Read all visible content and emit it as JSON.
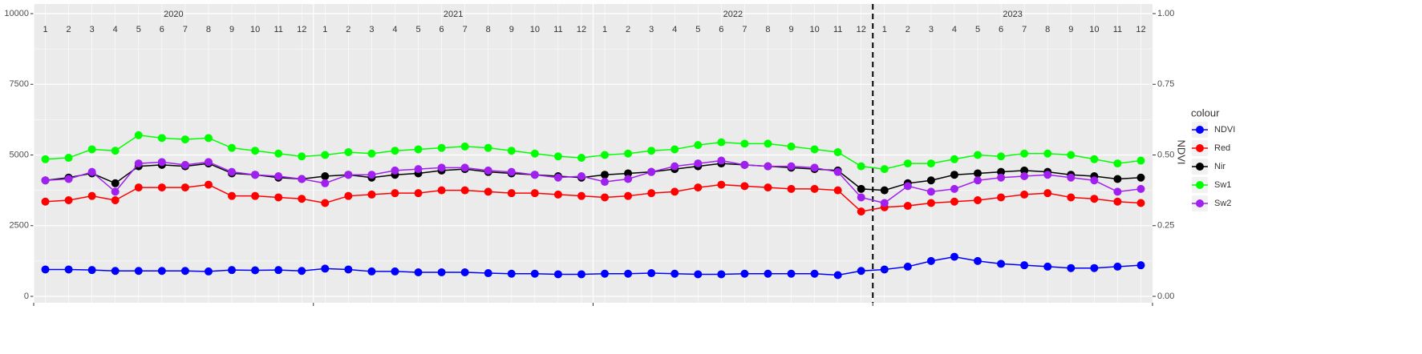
{
  "chart_data": {
    "type": "line",
    "years": [
      "2020",
      "2021",
      "2022",
      "2023"
    ],
    "months": [
      "1",
      "2",
      "3",
      "4",
      "5",
      "6",
      "7",
      "8",
      "9",
      "10",
      "11",
      "12"
    ],
    "x": [
      "2020-01",
      "2020-02",
      "2020-03",
      "2020-04",
      "2020-05",
      "2020-06",
      "2020-07",
      "2020-08",
      "2020-09",
      "2020-10",
      "2020-11",
      "2020-12",
      "2021-01",
      "2021-02",
      "2021-03",
      "2021-04",
      "2021-05",
      "2021-06",
      "2021-07",
      "2021-08",
      "2021-09",
      "2021-10",
      "2021-11",
      "2021-12",
      "2022-01",
      "2022-02",
      "2022-03",
      "2022-04",
      "2022-05",
      "2022-06",
      "2022-07",
      "2022-08",
      "2022-09",
      "2022-10",
      "2022-11",
      "2022-12",
      "2023-01",
      "2023-02",
      "2023-03",
      "2023-04",
      "2023-05",
      "2023-06",
      "2023-07",
      "2023-08",
      "2023-09",
      "2023-10",
      "2023-11",
      "2023-12"
    ],
    "ylim": [
      0,
      10000
    ],
    "yticks": [
      0,
      2500,
      5000,
      7500,
      10000
    ],
    "y2label": "NDVI",
    "y2lim": [
      0,
      1
    ],
    "y2ticks": [
      {
        "value": 0,
        "label": "0.00"
      },
      {
        "value": 0.25,
        "label": "0.25"
      },
      {
        "value": 0.5,
        "label": "0.50"
      },
      {
        "value": 0.75,
        "label": "0.75"
      },
      {
        "value": 1,
        "label": "1.00"
      }
    ],
    "vline": "2023-01",
    "grid": true,
    "legend_title": "colour",
    "series": [
      {
        "name": "NDVI",
        "color": "#0000ff",
        "axis": "y2",
        "values": [
          0.095,
          0.095,
          0.093,
          0.09,
          0.09,
          0.09,
          0.09,
          0.088,
          0.093,
          0.092,
          0.093,
          0.09,
          0.098,
          0.095,
          0.088,
          0.088,
          0.085,
          0.085,
          0.085,
          0.082,
          0.08,
          0.08,
          0.078,
          0.078,
          0.08,
          0.08,
          0.082,
          0.08,
          0.078,
          0.078,
          0.08,
          0.08,
          0.08,
          0.08,
          0.075,
          0.09,
          0.095,
          0.105,
          0.125,
          0.14,
          0.125,
          0.115,
          0.11,
          0.105,
          0.1,
          0.1,
          0.105,
          0.11
        ]
      },
      {
        "name": "Red",
        "color": "#ff0000",
        "values": [
          3350,
          3400,
          3550,
          3400,
          3850,
          3850,
          3850,
          3950,
          3550,
          3550,
          3500,
          3450,
          3300,
          3550,
          3600,
          3650,
          3650,
          3750,
          3750,
          3700,
          3650,
          3650,
          3600,
          3550,
          3500,
          3550,
          3650,
          3700,
          3850,
          3950,
          3900,
          3850,
          3800,
          3800,
          3750,
          3000,
          3150,
          3200,
          3300,
          3350,
          3400,
          3500,
          3600,
          3650,
          3500,
          3450,
          3350,
          3300
        ]
      },
      {
        "name": "Nir",
        "color": "#000000",
        "values": [
          4100,
          4200,
          4350,
          4000,
          4600,
          4650,
          4600,
          4700,
          4350,
          4300,
          4200,
          4150,
          4250,
          4300,
          4200,
          4300,
          4350,
          4450,
          4500,
          4400,
          4350,
          4300,
          4250,
          4200,
          4300,
          4350,
          4400,
          4500,
          4600,
          4700,
          4650,
          4600,
          4550,
          4500,
          4450,
          3800,
          3750,
          4000,
          4100,
          4300,
          4350,
          4400,
          4450,
          4400,
          4300,
          4250,
          4150,
          4200
        ]
      },
      {
        "name": "Sw1",
        "color": "#00ff00",
        "values": [
          4850,
          4900,
          5200,
          5150,
          5700,
          5600,
          5550,
          5600,
          5250,
          5150,
          5050,
          4950,
          5000,
          5100,
          5050,
          5150,
          5200,
          5250,
          5300,
          5250,
          5150,
          5050,
          4950,
          4900,
          5000,
          5050,
          5150,
          5200,
          5350,
          5450,
          5400,
          5400,
          5300,
          5200,
          5100,
          4600,
          4500,
          4700,
          4700,
          4850,
          5000,
          4950,
          5050,
          5050,
          5000,
          4850,
          4700,
          4800
        ]
      },
      {
        "name": "Sw2",
        "color": "#a020f0",
        "values": [
          4100,
          4150,
          4400,
          3700,
          4700,
          4750,
          4650,
          4750,
          4400,
          4300,
          4250,
          4150,
          4000,
          4300,
          4300,
          4450,
          4500,
          4550,
          4550,
          4450,
          4400,
          4300,
          4200,
          4250,
          4050,
          4150,
          4400,
          4600,
          4700,
          4800,
          4650,
          4600,
          4600,
          4550,
          4400,
          3500,
          3300,
          3900,
          3700,
          3800,
          4100,
          4200,
          4250,
          4300,
          4200,
          4100,
          3700,
          3800
        ]
      }
    ]
  }
}
